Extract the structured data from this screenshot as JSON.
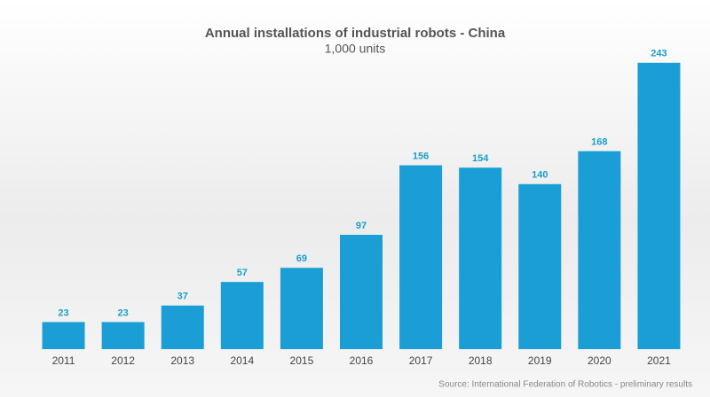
{
  "chart_data": {
    "type": "bar",
    "title": "Annual installations of industrial robots - China",
    "subtitle": "1,000 units",
    "categories": [
      "2011",
      "2012",
      "2013",
      "2014",
      "2015",
      "2016",
      "2017",
      "2018",
      "2019",
      "2020",
      "2021"
    ],
    "values": [
      23,
      23,
      37,
      57,
      69,
      97,
      156,
      154,
      140,
      168,
      243
    ],
    "color": "#1a9ed5",
    "label_color": "#1a9ec8",
    "source": "Source: International Federation of Robotics - preliminary results"
  }
}
